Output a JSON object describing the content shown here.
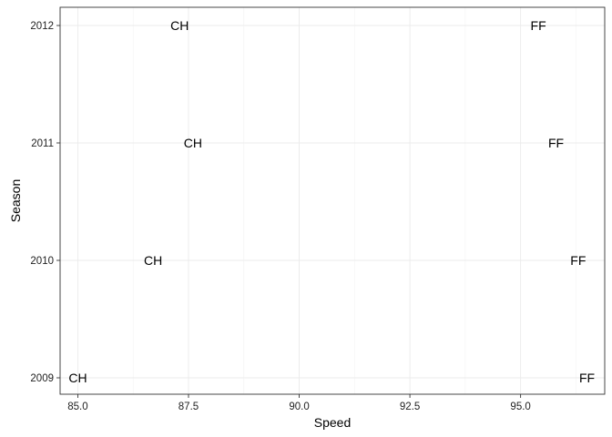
{
  "chart_data": {
    "type": "scatter",
    "title": "",
    "xlabel": "Speed",
    "ylabel": "Season",
    "xlim": [
      84.6,
      96.9
    ],
    "x_ticks": [
      85.0,
      87.5,
      90.0,
      92.5,
      95.0
    ],
    "x_tick_labels": [
      "85.0",
      "87.5",
      "90.0",
      "92.5",
      "95.0"
    ],
    "y_categories": [
      "2009",
      "2010",
      "2011",
      "2012"
    ],
    "grid": true,
    "legend": "none",
    "points": [
      {
        "label": "CH",
        "x": 85.0,
        "y": "2009"
      },
      {
        "label": "CH",
        "x": 86.7,
        "y": "2010"
      },
      {
        "label": "CH",
        "x": 87.6,
        "y": "2011"
      },
      {
        "label": "CH",
        "x": 87.3,
        "y": "2012"
      },
      {
        "label": "FF",
        "x": 96.5,
        "y": "2009"
      },
      {
        "label": "FF",
        "x": 96.3,
        "y": "2010"
      },
      {
        "label": "FF",
        "x": 95.8,
        "y": "2011"
      },
      {
        "label": "FF",
        "x": 95.4,
        "y": "2012"
      }
    ]
  }
}
